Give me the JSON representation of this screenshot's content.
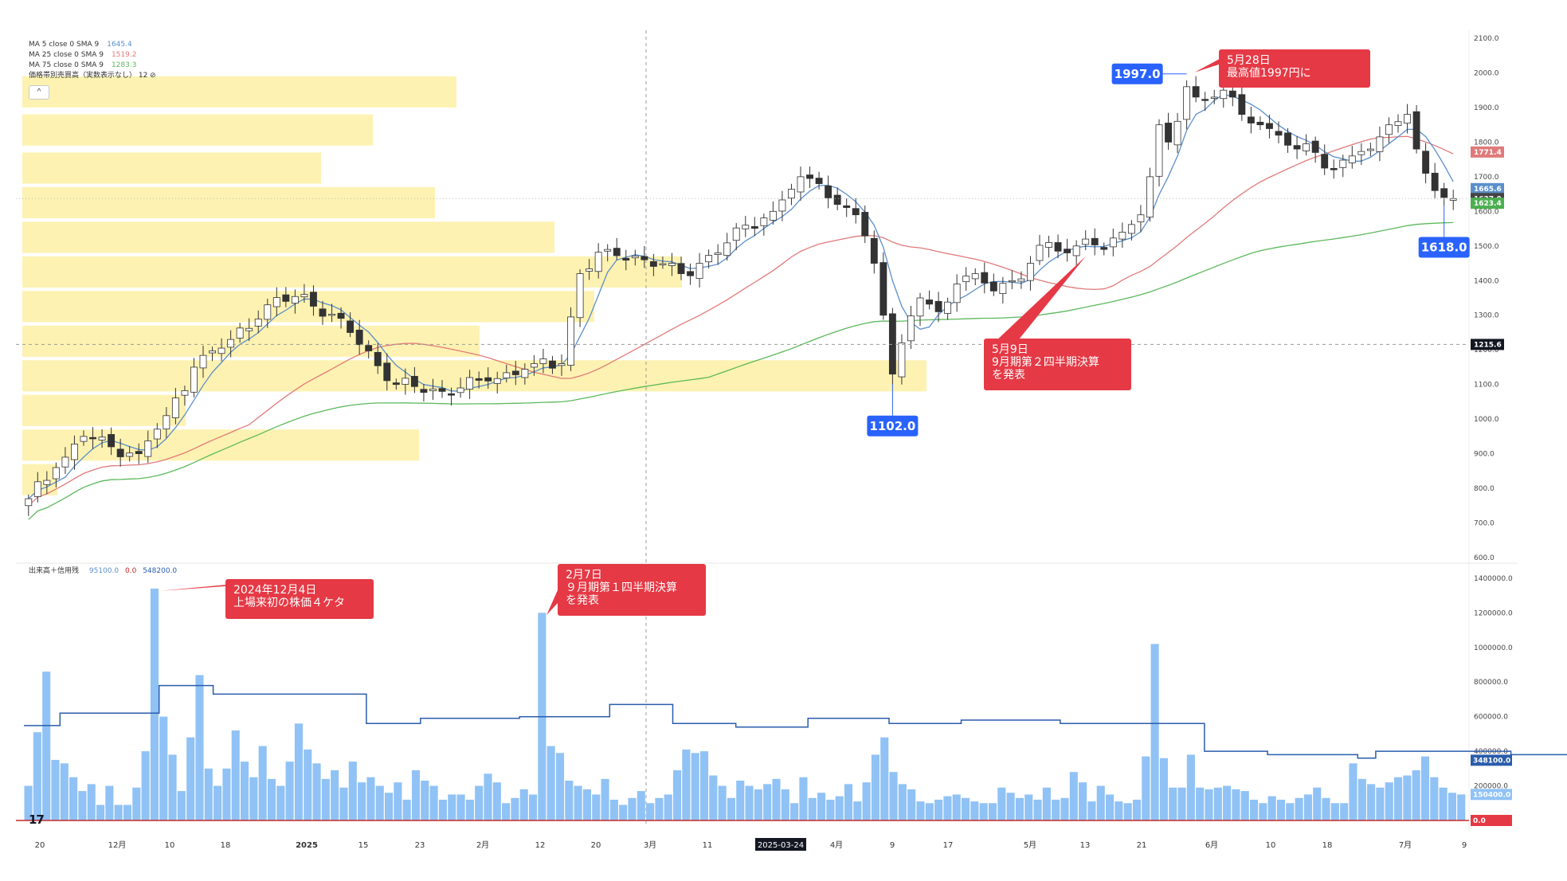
{
  "legend": {
    "ma5_label": "MA 5 close 0 SMA 9",
    "ma5_value": "1645.4",
    "ma5_color": "#5b8fc9",
    "ma25_label": "MA 25 close 0 SMA 9",
    "ma25_value": "1519.2",
    "ma25_color": "#e07a7a",
    "ma75_label": "MA 75 close 0 SMA 9",
    "ma75_value": "1283.3",
    "ma75_color": "#5cb85c",
    "vp_label": "価格帯別売買高（実数表示なし） 12 ⊘",
    "vol_label": "出来高＋信用残",
    "vol_value1": "95100.0",
    "vol_value2": "0.0",
    "vol_value3": "548200.0"
  },
  "chart_data": [
    {
      "type": "candlestick",
      "title": "",
      "ylim": [
        600,
        2100
      ],
      "y_ticks": [
        "600.0",
        "700.0",
        "800.0",
        "900.0",
        "1000.0",
        "1100.0",
        "1200.0",
        "1300.0",
        "1400.0",
        "1500.0",
        "1600.0",
        "1700.0",
        "1800.0",
        "1900.0",
        "2000.0",
        "2100.0"
      ],
      "x_ticks": [
        "20",
        "12月",
        "10",
        "18",
        "2025",
        "15",
        "23",
        "2月",
        "12",
        "20",
        "3月",
        "11",
        "2025-03-24",
        "4月",
        "9",
        "17",
        "5月",
        "13",
        "21",
        "6月",
        "10",
        "18",
        "7月",
        "9"
      ],
      "crosshair_x_label": "2025-03-24",
      "crosshair_price": 1215.6,
      "crosshair_price_label": "1215.6",
      "last_price": 1637.0,
      "price_labels": [
        {
          "text": "1771.4",
          "value": 1771.4,
          "color": "#e07a7a"
        },
        {
          "text": "1665.6",
          "value": 1665.6,
          "color": "#5b8fc9"
        },
        {
          "text": "1637.0",
          "value": 1637.0,
          "color": "#444444"
        },
        {
          "text": "1623.4",
          "value": 1623.4,
          "color": "#4caf50"
        },
        {
          "text": "1215.6",
          "value": 1215.6,
          "color": "#131722"
        }
      ],
      "anchors": [
        {
          "i": 0,
          "c": 770
        },
        {
          "i": 3,
          "c": 860
        },
        {
          "i": 6,
          "c": 950
        },
        {
          "i": 9,
          "c": 920
        },
        {
          "i": 12,
          "c": 900
        },
        {
          "i": 15,
          "c": 1010
        },
        {
          "i": 18,
          "c": 1150
        },
        {
          "i": 22,
          "c": 1230
        },
        {
          "i": 26,
          "c": 1330
        },
        {
          "i": 30,
          "c": 1360
        },
        {
          "i": 35,
          "c": 1250
        },
        {
          "i": 40,
          "c": 1100
        },
        {
          "i": 45,
          "c": 1080
        },
        {
          "i": 50,
          "c": 1110
        },
        {
          "i": 55,
          "c": 1160
        },
        {
          "i": 58,
          "c": 1160
        },
        {
          "i": 60,
          "c": 1420
        },
        {
          "i": 63,
          "c": 1490
        },
        {
          "i": 67,
          "c": 1460
        },
        {
          "i": 71,
          "c": 1420
        },
        {
          "i": 75,
          "c": 1480
        },
        {
          "i": 78,
          "c": 1560
        },
        {
          "i": 81,
          "c": 1600
        },
        {
          "i": 84,
          "c": 1700
        },
        {
          "i": 86,
          "c": 1680
        },
        {
          "i": 88,
          "c": 1620
        },
        {
          "i": 90,
          "c": 1590
        },
        {
          "i": 92,
          "c": 1450
        },
        {
          "i": 93,
          "c": 1300
        },
        {
          "i": 94,
          "c": 1130
        },
        {
          "i": 95,
          "c": 1220
        },
        {
          "i": 97,
          "c": 1350
        },
        {
          "i": 99,
          "c": 1310
        },
        {
          "i": 101,
          "c": 1390
        },
        {
          "i": 103,
          "c": 1420
        },
        {
          "i": 105,
          "c": 1370
        },
        {
          "i": 107,
          "c": 1400
        },
        {
          "i": 109,
          "c": 1450
        },
        {
          "i": 111,
          "c": 1510
        },
        {
          "i": 113,
          "c": 1480
        },
        {
          "i": 115,
          "c": 1520
        },
        {
          "i": 117,
          "c": 1490
        },
        {
          "i": 119,
          "c": 1540
        },
        {
          "i": 121,
          "c": 1590
        },
        {
          "i": 122,
          "c": 1700
        },
        {
          "i": 123,
          "c": 1850
        },
        {
          "i": 124,
          "c": 1800
        },
        {
          "i": 125,
          "c": 1860
        },
        {
          "i": 126,
          "c": 1960
        },
        {
          "i": 128,
          "c": 1920
        },
        {
          "i": 130,
          "c": 1950
        },
        {
          "i": 132,
          "c": 1880
        },
        {
          "i": 134,
          "c": 1850
        },
        {
          "i": 136,
          "c": 1820
        },
        {
          "i": 138,
          "c": 1780
        },
        {
          "i": 140,
          "c": 1770
        },
        {
          "i": 142,
          "c": 1720
        },
        {
          "i": 144,
          "c": 1760
        },
        {
          "i": 146,
          "c": 1780
        },
        {
          "i": 148,
          "c": 1850
        },
        {
          "i": 150,
          "c": 1880
        },
        {
          "i": 151,
          "c": 1780
        },
        {
          "i": 152,
          "c": 1710
        },
        {
          "i": 153,
          "c": 1660
        },
        {
          "i": 154,
          "c": 1640
        },
        {
          "i": 155,
          "c": 1637
        }
      ],
      "volume_profile": [
        {
          "low": 1900,
          "high": 1990,
          "volume": 545
        },
        {
          "low": 1790,
          "high": 1880,
          "volume": 440
        },
        {
          "low": 1680,
          "high": 1770,
          "volume": 375
        },
        {
          "low": 1580,
          "high": 1670,
          "volume": 518
        },
        {
          "low": 1480,
          "high": 1570,
          "volume": 668
        },
        {
          "low": 1380,
          "high": 1470,
          "volume": 828
        },
        {
          "low": 1280,
          "high": 1370,
          "volume": 718
        },
        {
          "low": 1180,
          "high": 1270,
          "volume": 574
        },
        {
          "low": 1080,
          "high": 1170,
          "volume": 1135
        },
        {
          "low": 980,
          "high": 1070,
          "volume": 205
        },
        {
          "low": 880,
          "high": 970,
          "volume": 498
        },
        {
          "low": 780,
          "high": 870,
          "volume": 44
        }
      ],
      "annotations": [
        {
          "label": "1997.0",
          "value": 1997.0,
          "kind": "high"
        },
        {
          "label": "1102.0",
          "value": 1102.0,
          "kind": "low"
        },
        {
          "label": "1618.0",
          "value": 1618.0,
          "kind": "low"
        }
      ],
      "callouts": [
        {
          "lines": [
            "5月28日",
            "最高値1997円に"
          ]
        },
        {
          "lines": [
            "5月9日",
            "9月期第２四半期決算",
            "を発表"
          ]
        }
      ]
    },
    {
      "type": "bar",
      "title": "",
      "ylim": [
        0,
        1450000
      ],
      "y_ticks": [
        "0.0",
        "200000.0",
        "400000.0",
        "600000.0",
        "800000.0",
        "1000000.0",
        "1200000.0",
        "1400000.0"
      ],
      "last_volume": 150400.0,
      "last_volume_label": "150400.0",
      "margin_balance_label": "348100.0",
      "zero_label": "0.0",
      "volume_colors": {
        "bar": "#90c2f5",
        "margin_line": "#2a5cab",
        "zero_line": "#c62828"
      },
      "volumes": [
        200000,
        510000,
        860000,
        350000,
        330000,
        250000,
        170000,
        210000,
        90000,
        200000,
        90000,
        90000,
        190000,
        400000,
        1340000,
        600000,
        380000,
        170000,
        480000,
        840000,
        300000,
        200000,
        300000,
        520000,
        340000,
        250000,
        430000,
        240000,
        200000,
        340000,
        560000,
        410000,
        330000,
        240000,
        290000,
        190000,
        340000,
        220000,
        250000,
        200000,
        160000,
        220000,
        120000,
        290000,
        230000,
        200000,
        120000,
        150000,
        150000,
        120000,
        200000,
        270000,
        220000,
        100000,
        130000,
        180000,
        150000,
        1200000,
        430000,
        390000,
        230000,
        200000,
        180000,
        150000,
        240000,
        120000,
        90000,
        130000,
        170000,
        100000,
        130000,
        150000,
        290000,
        410000,
        390000,
        400000,
        260000,
        200000,
        130000,
        230000,
        200000,
        180000,
        210000,
        240000,
        180000,
        100000,
        250000,
        130000,
        160000,
        120000,
        140000,
        210000,
        110000,
        220000,
        380000,
        480000,
        280000,
        210000,
        180000,
        110000,
        100000,
        120000,
        140000,
        150000,
        130000,
        110000,
        100000,
        100000,
        190000,
        160000,
        130000,
        150000,
        120000,
        190000,
        120000,
        130000,
        280000,
        220000,
        110000,
        200000,
        150000,
        110000,
        100000,
        120000,
        370000,
        1020000,
        360000,
        190000,
        190000,
        380000,
        190000,
        180000,
        190000,
        200000,
        180000,
        170000,
        120000,
        100000,
        140000,
        120000,
        100000,
        130000,
        150000,
        190000,
        130000,
        100000,
        100000,
        330000,
        240000,
        210000,
        190000,
        220000,
        250000,
        260000,
        290000,
        370000,
        250000,
        190000,
        160000,
        150400
      ],
      "margin_balance": [
        {
          "i": 0,
          "v": 548200
        },
        {
          "i": 4,
          "v": 548200
        },
        {
          "i": 4,
          "v": 620000
        },
        {
          "i": 15,
          "v": 620000
        },
        {
          "i": 15,
          "v": 780000
        },
        {
          "i": 21,
          "v": 780000
        },
        {
          "i": 21,
          "v": 730000
        },
        {
          "i": 38,
          "v": 730000
        },
        {
          "i": 38,
          "v": 560000
        },
        {
          "i": 44,
          "v": 560000
        },
        {
          "i": 44,
          "v": 590000
        },
        {
          "i": 55,
          "v": 590000
        },
        {
          "i": 55,
          "v": 600000
        },
        {
          "i": 65,
          "v": 600000
        },
        {
          "i": 65,
          "v": 670000
        },
        {
          "i": 72,
          "v": 670000
        },
        {
          "i": 72,
          "v": 560000
        },
        {
          "i": 79,
          "v": 560000
        },
        {
          "i": 79,
          "v": 540000
        },
        {
          "i": 87,
          "v": 540000
        },
        {
          "i": 87,
          "v": 590000
        },
        {
          "i": 96,
          "v": 590000
        },
        {
          "i": 96,
          "v": 560000
        },
        {
          "i": 104,
          "v": 560000
        },
        {
          "i": 104,
          "v": 580000
        },
        {
          "i": 115,
          "v": 580000
        },
        {
          "i": 115,
          "v": 560000
        },
        {
          "i": 131,
          "v": 560000
        },
        {
          "i": 131,
          "v": 400000
        },
        {
          "i": 138,
          "v": 400000
        },
        {
          "i": 138,
          "v": 380000
        },
        {
          "i": 148,
          "v": 380000
        },
        {
          "i": 148,
          "v": 360000
        },
        {
          "i": 150,
          "v": 360000
        },
        {
          "i": 150,
          "v": 400000
        },
        {
          "i": 165,
          "v": 400000
        },
        {
          "i": 165,
          "v": 380000
        },
        {
          "i": 178,
          "v": 380000
        },
        {
          "i": 178,
          "v": 360000
        },
        {
          "i": 185,
          "v": 360000
        },
        {
          "i": 185,
          "v": 330000
        },
        {
          "i": 200,
          "v": 330000
        },
        {
          "i": 200,
          "v": 348100
        },
        {
          "i": 226,
          "v": 348100
        }
      ],
      "callouts": [
        {
          "lines": [
            "2024年12月4日",
            "上場来初の株価４ケタ"
          ]
        },
        {
          "lines": [
            "2月7日",
            "９月期第１四半期決算",
            "を発表"
          ]
        }
      ]
    }
  ],
  "toolbar": {
    "collapse_icon_text": "^",
    "logo_text": "17"
  }
}
